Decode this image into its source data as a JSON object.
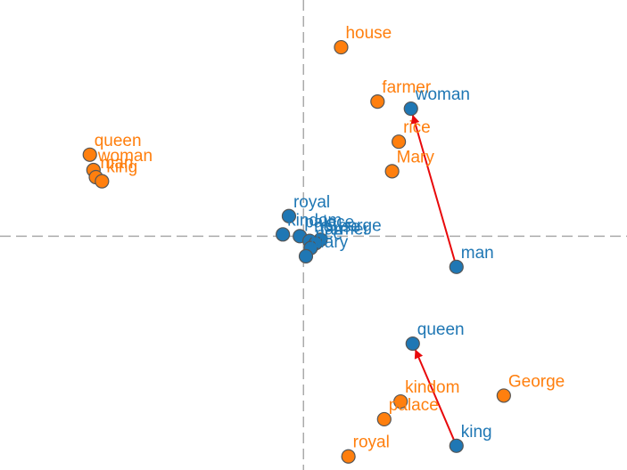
{
  "chart_data": {
    "type": "scatter",
    "title": "",
    "xlabel": "",
    "ylabel": "",
    "xlim": [
      -5.0,
      5.33
    ],
    "ylim": [
      -3.96,
      4.0
    ],
    "grid": false,
    "axes": "crosshair through origin, dashed",
    "colors": {
      "blue": "#1f77b4",
      "orange": "#ff7f0e",
      "arrow": "#e8090b"
    },
    "series": [
      {
        "color": "orange",
        "points": [
          {
            "label": "house",
            "x": 0.62,
            "y": 3.2
          },
          {
            "label": "farmer",
            "x": 1.22,
            "y": 2.28
          },
          {
            "label": "rice",
            "x": 1.57,
            "y": 1.6
          },
          {
            "label": "Mary",
            "x": 1.46,
            "y": 1.1
          },
          {
            "label": "queen",
            "x": -3.52,
            "y": 1.38
          },
          {
            "label": "woman",
            "x": -3.46,
            "y": 1.12
          },
          {
            "label": "man",
            "x": -3.42,
            "y": 1.0
          },
          {
            "label": "king",
            "x": -3.32,
            "y": 0.93
          },
          {
            "label": "kindom",
            "x": 1.6,
            "y": -2.8
          },
          {
            "label": "palace",
            "x": 1.33,
            "y": -3.1
          },
          {
            "label": "royal",
            "x": 0.74,
            "y": -3.73
          },
          {
            "label": "George",
            "x": 3.3,
            "y": -2.7
          }
        ]
      },
      {
        "color": "blue",
        "points": [
          {
            "label": "woman",
            "x": 1.77,
            "y": 2.16
          },
          {
            "label": "man",
            "x": 2.52,
            "y": -0.52
          },
          {
            "label": "queen",
            "x": 1.8,
            "y": -1.82
          },
          {
            "label": "king",
            "x": 2.52,
            "y": -3.55
          },
          {
            "label": "royal",
            "x": -0.24,
            "y": 0.34
          },
          {
            "label": "kindom",
            "x": -0.34,
            "y": 0.03
          },
          {
            "label": "palace",
            "x": -0.06,
            "y": 0.0
          },
          {
            "label": "house",
            "x": 0.1,
            "y": -0.08
          },
          {
            "label": "George",
            "x": 0.28,
            "y": -0.06
          },
          {
            "label": "farmer",
            "x": 0.2,
            "y": -0.12
          },
          {
            "label": "rice",
            "x": 0.12,
            "y": -0.2
          },
          {
            "label": "Mary",
            "x": 0.04,
            "y": -0.34
          }
        ]
      }
    ],
    "arrows": [
      {
        "from": [
          2.52,
          -0.52
        ],
        "to": [
          1.77,
          2.16
        ]
      },
      {
        "from": [
          2.52,
          -3.55
        ],
        "to": [
          1.8,
          -1.82
        ]
      }
    ]
  }
}
